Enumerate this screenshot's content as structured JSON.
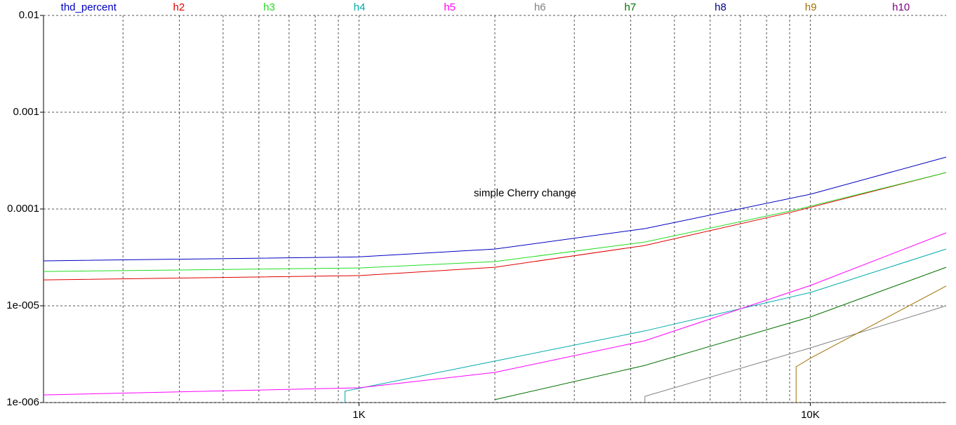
{
  "chart_data": {
    "type": "line",
    "log_x": true,
    "log_y": true,
    "grid": true,
    "annotation": "simple Cherry change",
    "xlim": [
      200,
      20000
    ],
    "ylim": [
      1e-06,
      0.01
    ],
    "xticks": [
      {
        "value": 1000,
        "label": "1K"
      },
      {
        "value": 10000,
        "label": "10K"
      }
    ],
    "xminor": [
      300,
      400,
      500,
      600,
      700,
      800,
      900,
      2000,
      3000,
      4000,
      5000,
      6000,
      7000,
      8000,
      9000
    ],
    "yticks": [
      {
        "value": 0.01,
        "label": "0.01"
      },
      {
        "value": 0.001,
        "label": "0.001"
      },
      {
        "value": 0.0001,
        "label": "0.0001"
      },
      {
        "value": 1e-05,
        "label": "1e-005"
      },
      {
        "value": 1e-06,
        "label": "1e-006"
      }
    ],
    "series": [
      {
        "name": "thd_percent",
        "color": "#0000c0",
        "x": [
          200,
          1000,
          2000,
          4300,
          10000,
          20000
        ],
        "values": [
          2.91e-05,
          3.2e-05,
          3.86e-05,
          6.27e-05,
          0.000142,
          0.000344
        ]
      },
      {
        "name": "h2",
        "color": "#e00000",
        "x": [
          200,
          1000,
          2000,
          4300,
          9200,
          20000
        ],
        "values": [
          1.85e-05,
          2.05e-05,
          2.5e-05,
          4.2e-05,
          9.4e-05,
          0.000238
        ]
      },
      {
        "name": "h3",
        "color": "#22dd22",
        "x": [
          200,
          1000,
          2000,
          4300,
          9200,
          20000
        ],
        "values": [
          2.26e-05,
          2.46e-05,
          2.86e-05,
          4.56e-05,
          9.7e-05,
          0.000238
        ]
      },
      {
        "name": "h4",
        "color": "#00aaaa",
        "x": [
          931,
          931,
          2000,
          4300,
          10000,
          20000
        ],
        "values": [
          1e-06,
          1.31e-06,
          2.68e-06,
          5.5e-06,
          1.37e-05,
          3.86e-05
        ]
      },
      {
        "name": "h5",
        "color": "#ff00ff",
        "x": [
          200,
          1000,
          2000,
          4300,
          10000,
          20000
        ],
        "values": [
          1.2e-06,
          1.42e-06,
          2.05e-06,
          4.35e-06,
          1.62e-05,
          5.67e-05
        ]
      },
      {
        "name": "h6",
        "color": "#808080",
        "x": [
          4300,
          4300,
          10000,
          20000
        ],
        "values": [
          1e-06,
          1.16e-06,
          3.67e-06,
          1e-05
        ]
      },
      {
        "name": "h7",
        "color": "#007000",
        "x": [
          2000,
          4300,
          10000,
          20000
        ],
        "values": [
          1.07e-06,
          2.42e-06,
          7.66e-06,
          2.5e-05
        ]
      },
      {
        "name": "h8",
        "color": "#000080",
        "x": [],
        "values": []
      },
      {
        "name": "h9",
        "color": "#a07000",
        "x": [
          9300,
          9300,
          10000,
          20000
        ],
        "values": [
          1e-06,
          2.34e-06,
          2.87e-06,
          1.6e-05
        ]
      },
      {
        "name": "h10",
        "color": "#800080",
        "x": [],
        "values": []
      }
    ]
  }
}
